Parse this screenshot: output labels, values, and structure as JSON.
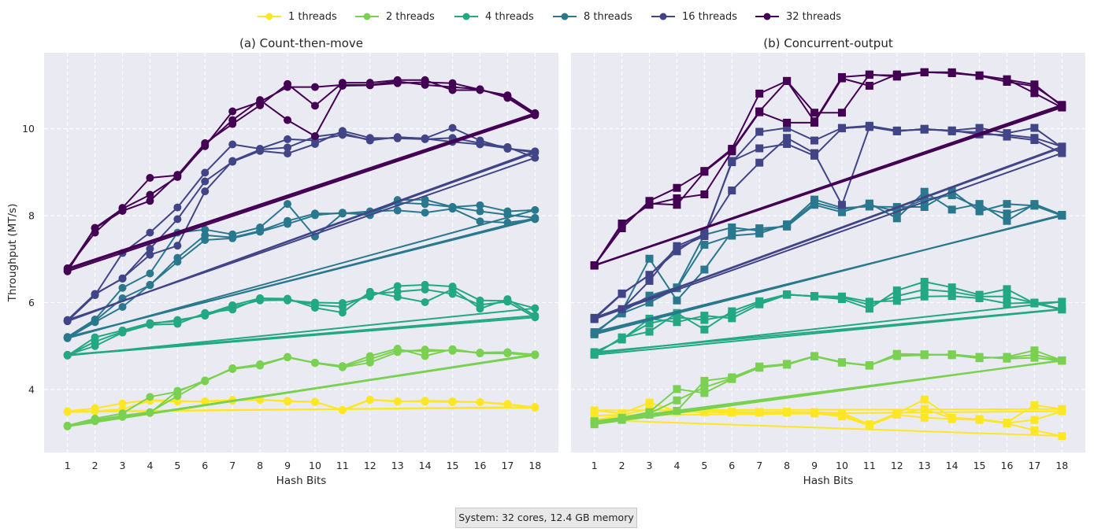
{
  "legend": [
    "1 threads",
    "2 threads",
    "4 threads",
    "8 threads",
    "16 threads",
    "32 threads"
  ],
  "colors": [
    "#fde725",
    "#7ad151",
    "#22a884",
    "#2a788e",
    "#414487",
    "#440154"
  ],
  "footnote": "System: 32 cores, 12.4 GB memory",
  "chart_data": [
    {
      "type": "line",
      "title": "(a) Count-then-move",
      "xlabel": "Hash Bits",
      "ylabel": "Throughput (MT/s)",
      "marker": "circle",
      "x": [
        1,
        2,
        3,
        4,
        5,
        6,
        7,
        8,
        9,
        10,
        11,
        12,
        13,
        14,
        15,
        16,
        17,
        18
      ],
      "xlim": [
        0.15,
        18.85
      ],
      "ylim": [
        2.55,
        11.75
      ],
      "yticks": [
        4,
        6,
        8,
        10
      ],
      "grid": true,
      "series": [
        {
          "name": "1 threads",
          "runs": [
            [
              3.5,
              3.57,
              3.68,
              3.76,
              3.74,
              3.72,
              3.74,
              3.76,
              3.74,
              3.71,
              3.53,
              3.77,
              3.73,
              3.72,
              3.71,
              3.71,
              3.67,
              3.58
            ],
            [
              3.48,
              3.5,
              3.55,
              3.74,
              3.72,
              3.73,
              3.76,
              3.77,
              3.72,
              3.72,
              3.52,
              3.76,
              3.72,
              3.74,
              3.73,
              3.71,
              3.65,
              3.6
            ]
          ]
        },
        {
          "name": "2 threads",
          "runs": [
            [
              3.15,
              3.27,
              3.37,
              3.46,
              3.97,
              4.19,
              4.48,
              4.58,
              4.74,
              4.62,
              4.54,
              4.77,
              4.94,
              4.77,
              4.93,
              4.83,
              4.83,
              4.79
            ],
            [
              3.17,
              3.33,
              3.45,
              3.83,
              3.95,
              4.21,
              4.47,
              4.55,
              4.74,
              4.61,
              4.51,
              4.62,
              4.86,
              4.92,
              4.89,
              4.85,
              4.86,
              4.8
            ],
            [
              3.16,
              3.3,
              3.4,
              3.48,
              3.85,
              4.2,
              4.49,
              4.57,
              4.75,
              4.61,
              4.52,
              4.7,
              4.9,
              4.88,
              4.9,
              4.84,
              4.84,
              4.81
            ]
          ]
        },
        {
          "name": "4 threads",
          "runs": [
            [
              4.8,
              5.0,
              5.31,
              5.49,
              5.51,
              5.76,
              5.84,
              6.1,
              6.09,
              5.88,
              5.77,
              6.25,
              6.13,
              6.01,
              6.31,
              5.86,
              6.08,
              5.7
            ],
            [
              4.78,
              5.2,
              5.36,
              5.53,
              5.57,
              5.73,
              5.94,
              6.1,
              6.05,
              6.0,
              5.99,
              6.14,
              6.38,
              6.41,
              6.37,
              6.05,
              6.04,
              5.87
            ],
            [
              4.79,
              5.1,
              5.33,
              5.51,
              5.6,
              5.7,
              5.9,
              6.05,
              6.06,
              5.95,
              5.9,
              6.2,
              6.25,
              6.3,
              6.2,
              5.95,
              6.02,
              5.66
            ]
          ]
        },
        {
          "name": "8 threads",
          "runs": [
            [
              5.18,
              5.55,
              5.9,
              6.41,
              6.94,
              7.44,
              7.48,
              7.63,
              7.81,
              8.01,
              8.07,
              8.01,
              8.36,
              8.37,
              8.2,
              8.24,
              8.1,
              8.13
            ],
            [
              5.21,
              5.61,
              6.34,
              6.67,
              7.61,
              7.68,
              7.57,
              7.73,
              8.27,
              7.52,
              8.05,
              8.1,
              8.12,
              8.07,
              8.16,
              7.87,
              7.84,
              7.92
            ],
            [
              5.2,
              5.58,
              6.1,
              6.4,
              7.03,
              7.55,
              7.5,
              7.65,
              7.88,
              8.05,
              8.05,
              8.05,
              8.3,
              8.27,
              8.2,
              8.1,
              8.02,
              7.95
            ]
          ]
        },
        {
          "name": "16 threads",
          "runs": [
            [
              5.57,
              6.17,
              7.14,
              7.61,
              8.19,
              8.99,
              9.64,
              9.54,
              9.76,
              9.73,
              9.86,
              9.75,
              9.8,
              9.78,
              10.02,
              9.73,
              9.54,
              9.48
            ],
            [
              5.6,
              6.2,
              6.55,
              7.24,
              7.92,
              8.79,
              9.24,
              9.49,
              9.43,
              9.65,
              9.95,
              9.79,
              9.78,
              9.76,
              9.79,
              9.67,
              9.58,
              9.33
            ],
            [
              5.58,
              6.19,
              6.56,
              7.1,
              7.31,
              8.56,
              9.26,
              9.52,
              9.57,
              9.82,
              9.9,
              9.73,
              9.81,
              9.77,
              9.7,
              9.64,
              9.55,
              9.45
            ]
          ]
        },
        {
          "name": "32 threads",
          "runs": [
            [
              6.72,
              7.71,
              8.11,
              8.34,
              8.94,
              9.6,
              10.4,
              10.62,
              10.96,
              10.96,
              11.01,
              11.01,
              11.09,
              11.01,
              10.96,
              10.91,
              10.71,
              10.31
            ],
            [
              6.79,
              7.61,
              8.18,
              8.87,
              8.93,
              9.67,
              10.11,
              10.54,
              11.03,
              10.53,
              11.06,
              11.06,
              11.12,
              11.12,
              10.89,
              10.89,
              10.77,
              10.36
            ],
            [
              6.76,
              7.72,
              8.16,
              8.48,
              8.89,
              9.63,
              10.2,
              10.66,
              10.2,
              9.83,
              10.99,
              11.0,
              11.05,
              11.07,
              11.05,
              10.9,
              10.74,
              10.34
            ]
          ]
        }
      ]
    },
    {
      "type": "line",
      "title": "(b) Concurrent-output",
      "xlabel": "Hash Bits",
      "marker": "square",
      "x": [
        1,
        2,
        3,
        4,
        5,
        6,
        7,
        8,
        9,
        10,
        11,
        12,
        13,
        14,
        15,
        16,
        17,
        18
      ],
      "xlim": [
        0.15,
        18.85
      ],
      "ylim": [
        2.55,
        11.75
      ],
      "yticks": [
        4,
        6,
        8,
        10
      ],
      "grid": true,
      "series": [
        {
          "name": "1 threads",
          "runs": [
            [
              3.52,
              3.45,
              3.7,
              3.5,
              3.51,
              3.49,
              3.48,
              3.49,
              3.48,
              3.46,
              3.2,
              3.45,
              3.77,
              3.35,
              3.32,
              3.24,
              3.64,
              3.55
            ],
            [
              3.3,
              3.4,
              3.42,
              3.48,
              3.48,
              3.47,
              3.47,
              3.47,
              3.45,
              3.38,
              3.17,
              3.42,
              3.35,
              3.32,
              3.3,
              3.22,
              3.06,
              2.93
            ],
            [
              3.4,
              3.42,
              3.55,
              3.49,
              3.5,
              3.48,
              3.48,
              3.48,
              3.47,
              3.42,
              3.18,
              3.44,
              3.55,
              3.34,
              3.31,
              3.23,
              3.3,
              3.5
            ]
          ]
        },
        {
          "name": "2 threads",
          "runs": [
            [
              3.2,
              3.3,
              3.42,
              3.51,
              4.2,
              4.28,
              4.53,
              4.59,
              4.77,
              4.63,
              4.55,
              4.82,
              4.81,
              4.79,
              4.72,
              4.75,
              4.9,
              4.67
            ],
            [
              3.27,
              3.35,
              3.48,
              4.01,
              3.92,
              4.24,
              4.5,
              4.57,
              4.76,
              4.62,
              4.56,
              4.77,
              4.79,
              4.81,
              4.75,
              4.71,
              4.73,
              4.66
            ],
            [
              3.24,
              3.32,
              3.45,
              3.75,
              4.05,
              4.26,
              4.51,
              4.58,
              4.77,
              4.62,
              4.55,
              4.8,
              4.8,
              4.8,
              4.74,
              4.73,
              4.8,
              4.67
            ]
          ]
        },
        {
          "name": "4 threads",
          "runs": [
            [
              4.8,
              5.2,
              5.33,
              5.76,
              5.38,
              5.8,
              6.03,
              6.19,
              6.14,
              6.08,
              5.86,
              6.28,
              6.48,
              6.35,
              6.18,
              6.31,
              5.98,
              5.84
            ],
            [
              4.86,
              5.15,
              5.63,
              5.55,
              5.7,
              5.64,
              5.96,
              6.18,
              6.15,
              6.14,
              6.02,
              6.04,
              6.14,
              6.15,
              6.1,
              5.98,
              6.0,
              5.85
            ],
            [
              4.83,
              5.17,
              5.52,
              5.66,
              5.6,
              5.72,
              6.0,
              6.18,
              6.15,
              6.12,
              5.95,
              6.15,
              6.3,
              6.25,
              6.14,
              6.14,
              5.99,
              6.02
            ]
          ]
        },
        {
          "name": "8 threads",
          "runs": [
            [
              5.27,
              5.8,
              7.01,
              6.05,
              6.76,
              7.63,
              7.71,
              7.75,
              8.25,
              8.08,
              8.28,
              7.94,
              8.55,
              8.14,
              8.27,
              7.88,
              8.27,
              8.02
            ],
            [
              5.32,
              5.75,
              6.0,
              6.33,
              7.33,
              7.54,
              7.59,
              7.8,
              8.37,
              8.18,
              8.21,
              8.2,
              8.2,
              8.57,
              8.1,
              8.27,
              8.23,
              8.0
            ],
            [
              5.3,
              5.78,
              6.16,
              6.35,
              7.56,
              7.73,
              7.65,
              7.78,
              8.3,
              8.14,
              8.25,
              8.1,
              8.38,
              8.47,
              8.18,
              8.05,
              8.24,
              8.01
            ]
          ]
        },
        {
          "name": "16 threads",
          "runs": [
            [
              5.64,
              5.85,
              6.5,
              7.3,
              7.57,
              9.23,
              9.93,
              10.02,
              9.73,
              10.02,
              10.07,
              9.96,
              9.98,
              9.96,
              10.02,
              9.9,
              10.02,
              9.57
            ],
            [
              5.62,
              6.2,
              6.64,
              7.18,
              7.6,
              8.58,
              9.22,
              9.79,
              9.44,
              8.25,
              10.04,
              9.94,
              10.0,
              9.94,
              9.92,
              9.82,
              9.74,
              9.44
            ],
            [
              5.65,
              6.21,
              6.63,
              7.25,
              7.53,
              9.26,
              9.55,
              9.65,
              9.38,
              10.01,
              10.05,
              9.95,
              9.99,
              9.96,
              9.87,
              9.86,
              9.79,
              9.59
            ]
          ]
        },
        {
          "name": "32 threads",
          "runs": [
            [
              6.86,
              7.71,
              8.34,
              8.64,
              9.03,
              9.54,
              10.81,
              11.1,
              10.37,
              10.37,
              11.25,
              11.2,
              11.3,
              11.28,
              11.22,
              11.08,
              10.98,
              10.55
            ],
            [
              6.85,
              7.82,
              8.25,
              8.4,
              8.49,
              9.48,
              10.38,
              10.14,
              10.14,
              11.16,
              10.99,
              11.25,
              11.3,
              11.3,
              11.22,
              11.14,
              10.82,
              10.49
            ],
            [
              6.86,
              7.79,
              8.28,
              8.25,
              9.01,
              9.51,
              10.4,
              11.1,
              10.17,
              11.19,
              11.24,
              11.23,
              11.3,
              11.29,
              11.23,
              11.13,
              11.02,
              10.52
            ]
          ]
        }
      ]
    }
  ]
}
